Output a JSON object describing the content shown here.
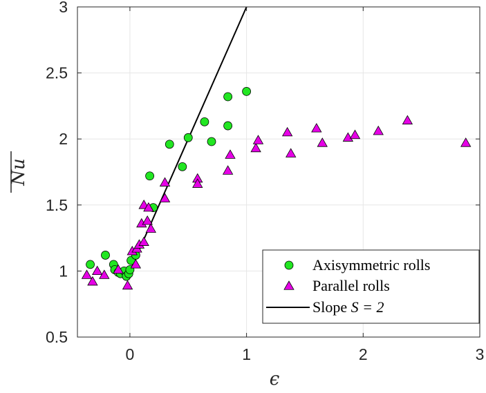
{
  "chart_data": {
    "type": "scatter",
    "xlabel": "ϵ",
    "ylabel": "Nu",
    "xlim": [
      -0.45,
      3
    ],
    "ylim": [
      0.5,
      3
    ],
    "xticks": [
      0,
      1,
      2,
      3
    ],
    "yticks": [
      0.5,
      1,
      1.5,
      2,
      2.5,
      3
    ],
    "xtick_labels": [
      "0",
      "1",
      "2",
      "3"
    ],
    "ytick_labels": [
      "0.5",
      "1",
      "1.5",
      "2",
      "2.5",
      "3"
    ],
    "grid": true,
    "legend_position": "bottom-right",
    "series": [
      {
        "name": "Axisymmetric rolls",
        "marker": "circle",
        "color": "#22e622",
        "points": [
          [
            -0.34,
            1.05
          ],
          [
            -0.21,
            1.12
          ],
          [
            -0.14,
            1.05
          ],
          [
            -0.13,
            1.01
          ],
          [
            -0.1,
            0.99
          ],
          [
            -0.08,
            0.98
          ],
          [
            -0.05,
            1.0
          ],
          [
            -0.03,
            0.96
          ],
          [
            -0.01,
            0.98
          ],
          [
            0.0,
            1.01
          ],
          [
            0.01,
            1.08
          ],
          [
            0.05,
            1.12
          ],
          [
            0.17,
            1.72
          ],
          [
            0.2,
            1.48
          ],
          [
            0.34,
            1.96
          ],
          [
            0.45,
            1.79
          ],
          [
            0.5,
            2.01
          ],
          [
            0.64,
            2.13
          ],
          [
            0.7,
            1.98
          ],
          [
            0.84,
            2.1
          ],
          [
            0.84,
            2.32
          ],
          [
            1.0,
            2.36
          ]
        ]
      },
      {
        "name": "Parallel rolls",
        "marker": "triangle",
        "color": "#e600e6",
        "points": [
          [
            -0.37,
            0.97
          ],
          [
            -0.32,
            0.92
          ],
          [
            -0.28,
            1.0
          ],
          [
            -0.22,
            0.97
          ],
          [
            -0.1,
            1.01
          ],
          [
            -0.02,
            0.89
          ],
          [
            0.02,
            1.15
          ],
          [
            0.05,
            1.05
          ],
          [
            0.06,
            1.17
          ],
          [
            0.08,
            1.2
          ],
          [
            0.1,
            1.36
          ],
          [
            0.12,
            1.5
          ],
          [
            0.12,
            1.22
          ],
          [
            0.15,
            1.38
          ],
          [
            0.16,
            1.48
          ],
          [
            0.18,
            1.32
          ],
          [
            0.3,
            1.67
          ],
          [
            0.3,
            1.55
          ],
          [
            0.58,
            1.7
          ],
          [
            0.58,
            1.66
          ],
          [
            0.84,
            1.76
          ],
          [
            0.86,
            1.88
          ],
          [
            1.08,
            1.93
          ],
          [
            1.1,
            1.99
          ],
          [
            1.35,
            2.05
          ],
          [
            1.38,
            1.89
          ],
          [
            1.6,
            2.08
          ],
          [
            1.65,
            1.97
          ],
          [
            1.87,
            2.01
          ],
          [
            1.93,
            2.03
          ],
          [
            2.13,
            2.06
          ],
          [
            2.38,
            2.14
          ],
          [
            2.88,
            1.97
          ]
        ]
      },
      {
        "name": "Slope S = 2",
        "type": "line",
        "color": "#000000",
        "points": [
          [
            0,
            1.0
          ],
          [
            1.0,
            3.0
          ]
        ]
      }
    ],
    "legend": [
      {
        "label": "Axisymmetric rolls",
        "marker": "circle"
      },
      {
        "label": "Parallel rolls",
        "marker": "triangle"
      },
      {
        "label_prefix": "Slope ",
        "label_math": "S = 2",
        "marker": "line"
      }
    ]
  }
}
